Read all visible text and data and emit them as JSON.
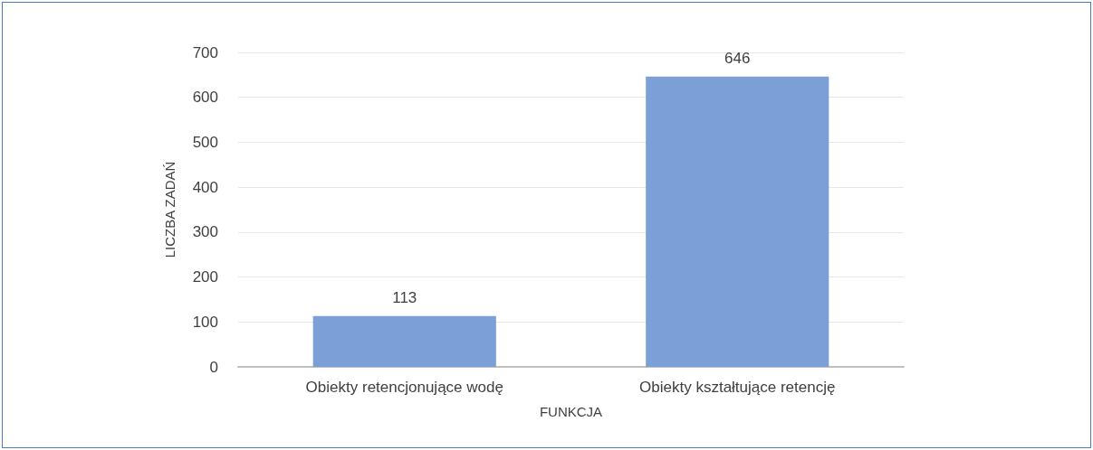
{
  "chart_data": {
    "type": "bar",
    "xlabel": "FUNKCJA",
    "ylabel": "LICZBA ZADAŃ",
    "categories": [
      "Obiekty retencjonujące wodę",
      "Obiekty kształtujące retencję"
    ],
    "values": [
      113,
      646
    ],
    "color": "#7b9fd6",
    "ylim": [
      0,
      700
    ],
    "yticks": [
      0,
      100,
      200,
      300,
      400,
      500,
      600,
      700
    ],
    "grid": "y",
    "data_labels": true
  }
}
